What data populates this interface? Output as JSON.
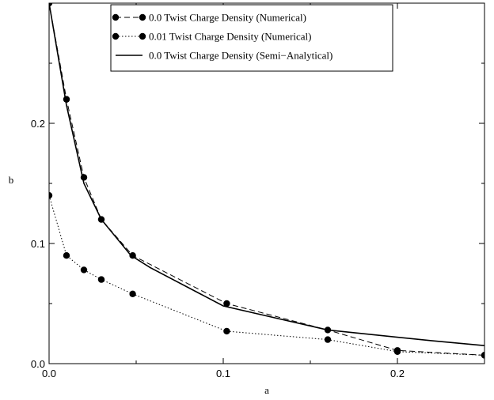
{
  "chart_data": {
    "type": "line",
    "xlabel": "a",
    "ylabel": "b",
    "xlim": [
      0.0,
      0.25
    ],
    "ylim": [
      0.0,
      0.3
    ],
    "x_ticks": [
      0.0,
      0.1,
      0.2
    ],
    "x_tick_labels": [
      "0.0",
      "0.1",
      "0.2"
    ],
    "y_ticks": [
      0.0,
      0.1,
      0.2
    ],
    "y_tick_labels": [
      "0.0",
      "0.1",
      "0.2"
    ],
    "grid": false,
    "legend_position": "top-center",
    "series": [
      {
        "name": "0.0 Twist Charge Density (Numerical)",
        "style": "dashed",
        "markers": true,
        "color": "#000000",
        "x": [
          0.0,
          0.01,
          0.02,
          0.03,
          0.048,
          0.102,
          0.16,
          0.2,
          0.25
        ],
        "y": [
          0.3,
          0.22,
          0.155,
          0.12,
          0.09,
          0.05,
          0.028,
          0.011,
          0.007
        ]
      },
      {
        "name": "0.01 Twist Charge Density (Numerical)",
        "style": "dotted",
        "markers": true,
        "color": "#000000",
        "x": [
          0.0,
          0.01,
          0.02,
          0.03,
          0.048,
          0.102,
          0.16,
          0.2,
          0.25
        ],
        "y": [
          0.14,
          0.09,
          0.078,
          0.07,
          0.058,
          0.027,
          0.02,
          0.01,
          0.007
        ]
      },
      {
        "name": "0.0 Twist Charge Density (Semi−Analytical)",
        "style": "solid",
        "markers": false,
        "color": "#000000",
        "x": [
          0.0,
          0.01,
          0.02,
          0.03,
          0.047,
          0.058,
          0.1,
          0.16,
          0.22,
          0.25
        ],
        "y": [
          0.3,
          0.215,
          0.15,
          0.12,
          0.09,
          0.08,
          0.048,
          0.028,
          0.019,
          0.015
        ]
      }
    ]
  }
}
